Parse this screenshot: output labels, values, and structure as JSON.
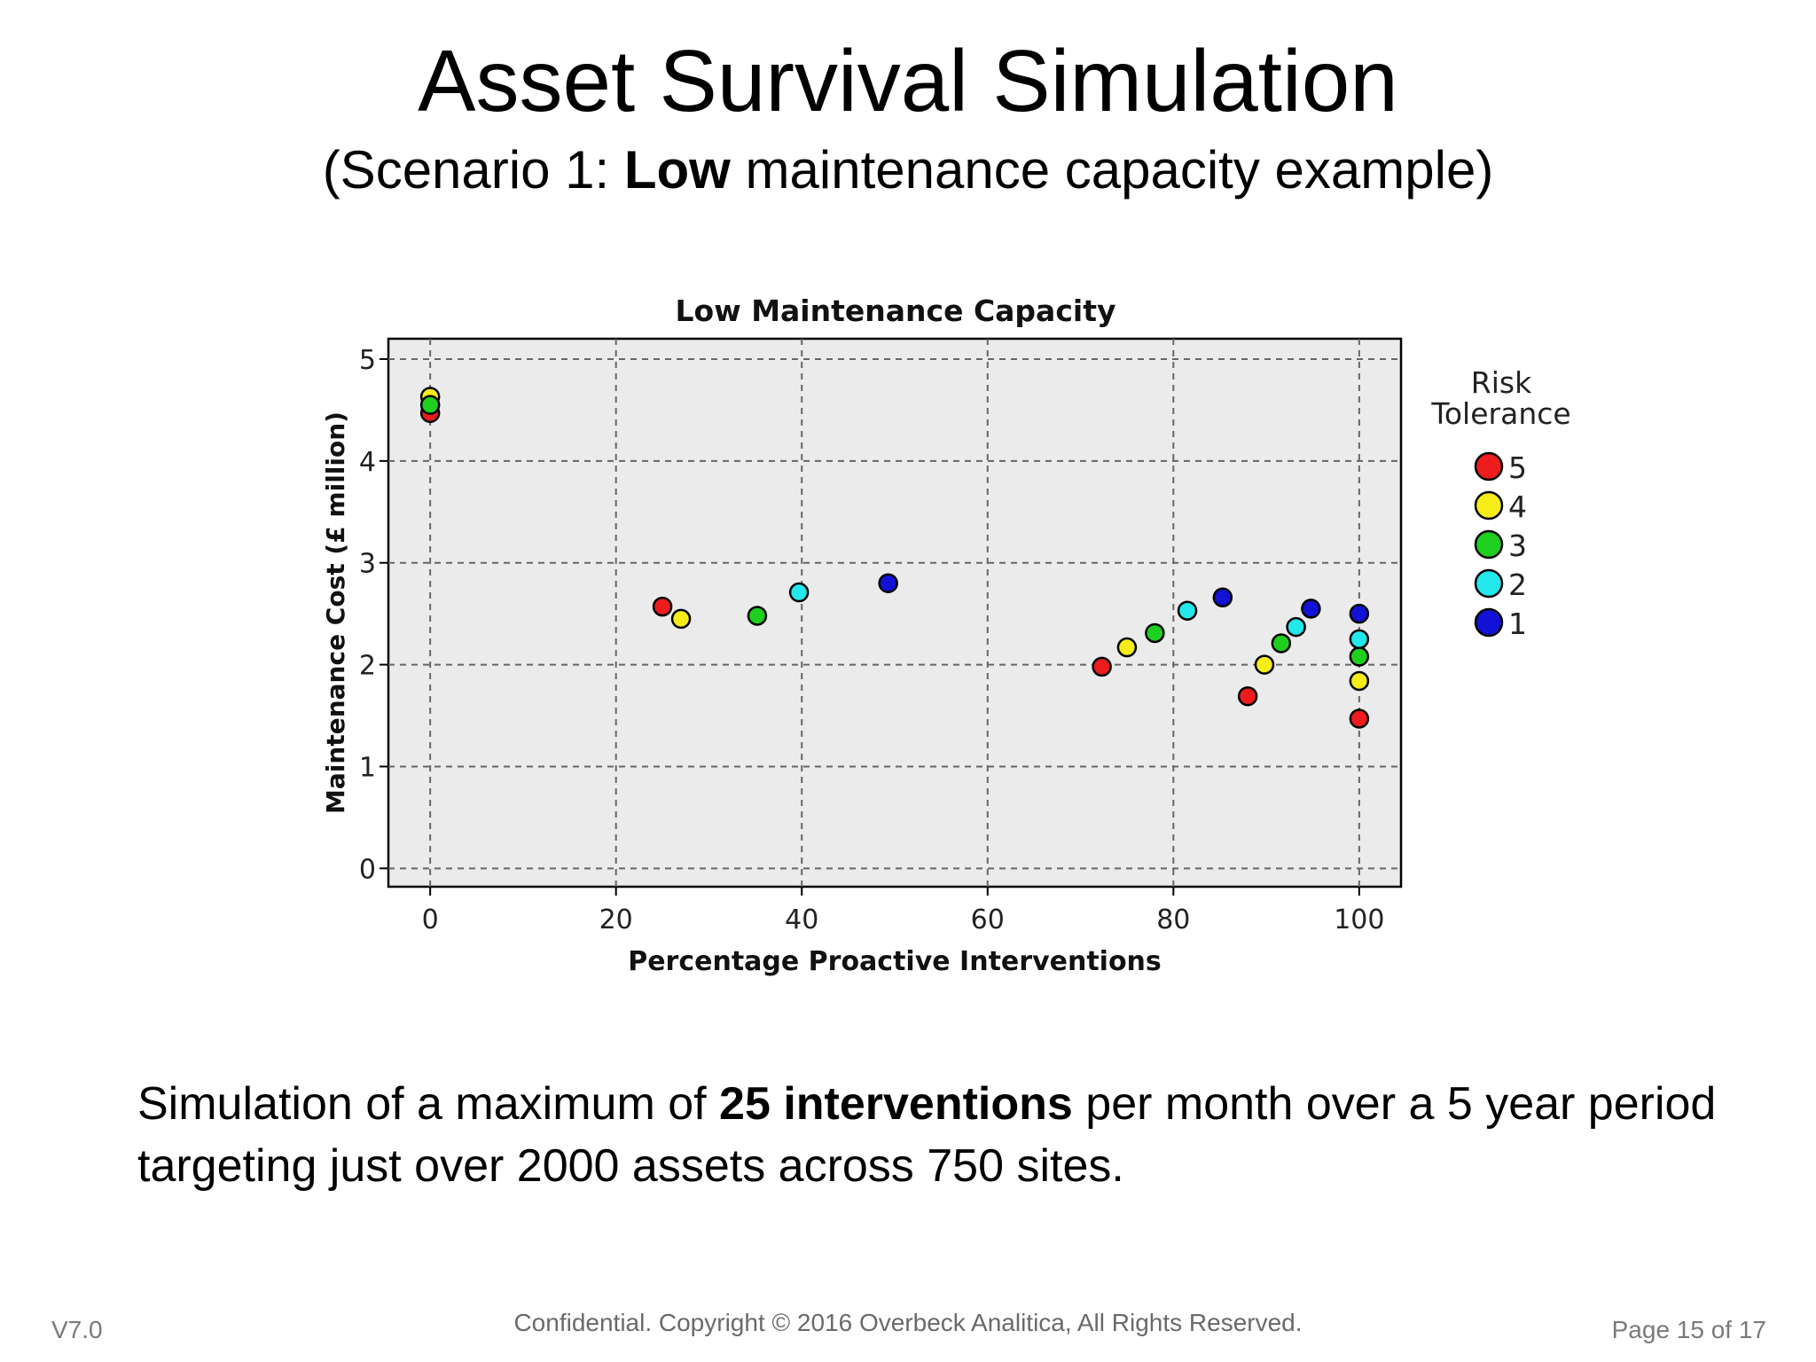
{
  "slide": {
    "title": "Asset Survival Simulation",
    "subtitle_pre": "(Scenario 1: ",
    "subtitle_bold": "Low",
    "subtitle_post": " maintenance capacity example)",
    "caption_pre": "Simulation of a maximum of ",
    "caption_bold": "25 interventions",
    "caption_post": " per month over a 5 year period targeting just over 2000 assets across 750 sites.",
    "footer_version": "V7.0",
    "footer_copyright": "Confidential. Copyright © 2016 Overbeck Analitica, All Rights Reserved.",
    "footer_page": "Page 15 of 17"
  },
  "chart_data": {
    "type": "scatter",
    "title": "Low Maintenance Capacity",
    "xlabel": "Percentage Proactive Interventions",
    "ylabel": "Maintenance Cost (£ million)",
    "xlim": [
      -4.5,
      104.5
    ],
    "ylim": [
      -0.18,
      5.2
    ],
    "xticks": [
      0,
      20,
      40,
      60,
      80,
      100
    ],
    "yticks": [
      0,
      1,
      2,
      3,
      4,
      5
    ],
    "grid": true,
    "legend_title": [
      "Risk",
      "Tolerance"
    ],
    "legend_placement": "right",
    "series": [
      {
        "name": "5",
        "color": "#ee1c1c",
        "points": [
          [
            0,
            4.47
          ],
          [
            25,
            2.57
          ],
          [
            72.3,
            1.98
          ],
          [
            88,
            1.69
          ],
          [
            100,
            1.47
          ]
        ]
      },
      {
        "name": "4",
        "color": "#f5ec1a",
        "points": [
          [
            0,
            4.63
          ],
          [
            27,
            2.45
          ],
          [
            75,
            2.17
          ],
          [
            89.8,
            2.0
          ],
          [
            100,
            1.84
          ]
        ]
      },
      {
        "name": "3",
        "color": "#1fcf1f",
        "points": [
          [
            0,
            4.55
          ],
          [
            35.2,
            2.48
          ],
          [
            78,
            2.31
          ],
          [
            91.6,
            2.21
          ],
          [
            100,
            2.08
          ]
        ]
      },
      {
        "name": "2",
        "color": "#22e8ec",
        "points": [
          [
            39.7,
            2.71
          ],
          [
            81.5,
            2.53
          ],
          [
            93.2,
            2.37
          ],
          [
            100,
            2.25
          ]
        ]
      },
      {
        "name": "1",
        "color": "#1212d6",
        "points": [
          [
            49.3,
            2.8
          ],
          [
            85.3,
            2.66
          ],
          [
            94.8,
            2.55
          ],
          [
            100,
            2.5
          ]
        ]
      }
    ]
  }
}
